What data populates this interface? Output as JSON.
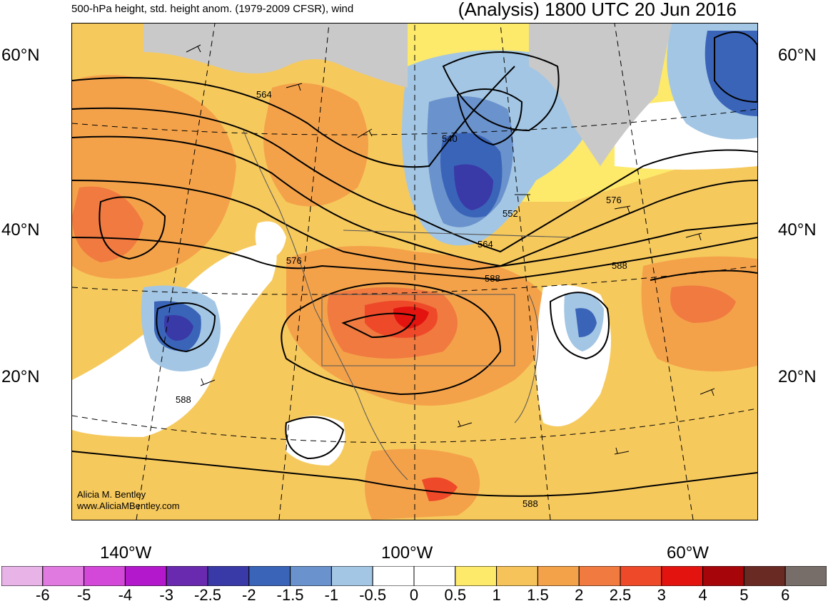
{
  "header": {
    "left_title": "500-hPa height, std. height anom. (1979-2009 CFSR), wind",
    "right_title": "(Analysis) 1800 UTC 20 Jun 2016"
  },
  "credit": {
    "line1": "Alicia M. Bentley",
    "line2": "www.AliciaMBentley.com"
  },
  "latitude_labels": [
    "60°N",
    "40°N",
    "20°N"
  ],
  "longitude_labels": [
    "140°W",
    "100°W",
    "60°W"
  ],
  "contour_labels": [
    "564",
    "540",
    "552",
    "564",
    "576",
    "576",
    "588",
    "588",
    "588",
    "588"
  ],
  "colorbar": {
    "labels": [
      "-6",
      "-5",
      "-4",
      "-3",
      "-2.5",
      "-2",
      "-1.5",
      "-1",
      "-0.5",
      "0",
      "0.5",
      "1",
      "1.5",
      "2",
      "2.5",
      "3",
      "4",
      "5",
      "6"
    ],
    "colors": [
      "#e8b4e8",
      "#e07ae0",
      "#d348d8",
      "#b318cc",
      "#6a2ab0",
      "#3a39a8",
      "#3a64b8",
      "#6a92cc",
      "#a3c6e4",
      "#ffffff",
      "#ffffff",
      "#fde96a",
      "#f5c35a",
      "#f4a24a",
      "#f07a40",
      "#ee4a2a",
      "#e3140f",
      "#a6050a",
      "#6a2a24",
      "#776e6a"
    ]
  }
}
